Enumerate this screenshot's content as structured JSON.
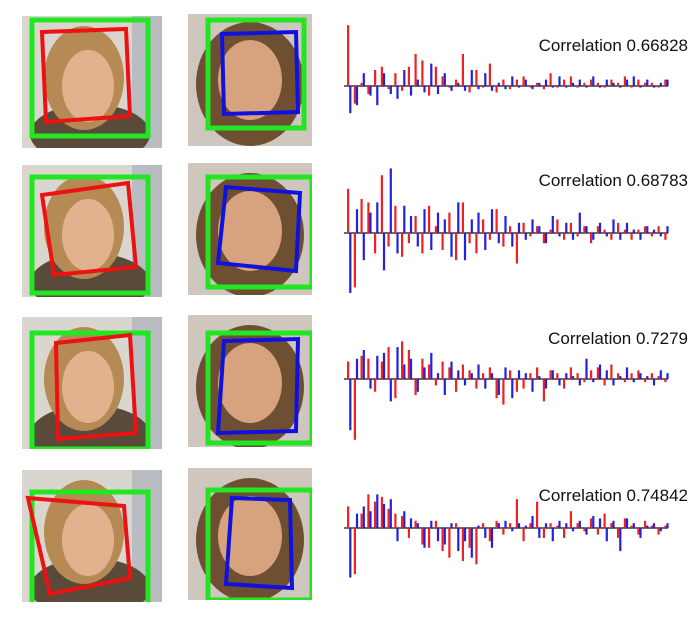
{
  "colors": {
    "face_box": "#22e622",
    "left_warp": "#ee1111",
    "right_warp": "#1111dd",
    "bar_a": "#ee2222",
    "bar_b": "#2222dd"
  },
  "rows": [
    {
      "label": "Correlation",
      "value": "0.66828"
    },
    {
      "label": "Correlation",
      "value": "0.68783"
    },
    {
      "label": "Correlation",
      "value": "0.7279"
    },
    {
      "label": "Correlation",
      "value": "0.74842"
    }
  ],
  "chart_data": [
    {
      "type": "bar",
      "title": "Correlation 0.66828",
      "series": [
        {
          "values": [
            0.95,
            -0.55,
            0.05,
            -0.25,
            0.25,
            0.3,
            -0.1,
            0.2,
            -0.15,
            0.3,
            0.5,
            0.4,
            -0.3,
            0.3,
            0.15,
            -0.05,
            0.1,
            0.5,
            -0.2,
            0.25,
            -0.05,
            0.35,
            -0.2,
            0.1,
            -0.1,
            0.1,
            0.15,
            -0.05,
            0.05,
            -0.1,
            0.2,
            -0.05,
            0.1,
            0.15,
            -0.05,
            0.05,
            0.1,
            0.05,
            -0.05,
            0.1,
            0.05,
            0.15,
            -0.05,
            0.1,
            0.05,
            0.05,
            -0.05,
            0.1
          ]
        },
        {
          "values": [
            -0.85,
            -0.6,
            0.2,
            -0.3,
            -0.6,
            0.2,
            -0.25,
            -0.4,
            0.25,
            -0.3,
            0.1,
            -0.2,
            0.35,
            -0.25,
            0.2,
            -0.15,
            0.05,
            -0.15,
            0.25,
            -0.1,
            0.2,
            -0.15,
            0.05,
            -0.1,
            0.15,
            -0.05,
            0.1,
            -0.1,
            0.05,
            0.1,
            -0.05,
            0.15,
            -0.05,
            0.05,
            0.1,
            -0.05,
            0.15,
            -0.05,
            0.1,
            0.05,
            -0.05,
            0.1,
            0.15,
            -0.05,
            0.1,
            -0.05,
            0.05,
            0.1
          ]
        }
      ]
    },
    {
      "type": "bar",
      "title": "Correlation 0.68783",
      "series": [
        {
          "values": [
            0.65,
            -0.8,
            0.5,
            0.45,
            -0.3,
            0.85,
            -0.2,
            0.4,
            -0.35,
            -0.15,
            0.25,
            -0.3,
            0.4,
            0.1,
            -0.25,
            0.3,
            -0.4,
            0.45,
            -0.15,
            -0.3,
            0.2,
            -0.1,
            0.35,
            -0.2,
            0.1,
            -0.45,
            0.15,
            -0.05,
            0.1,
            -0.15,
            0.05,
            0.2,
            -0.1,
            0.15,
            -0.05,
            0.1,
            -0.15,
            0.1,
            0.05,
            -0.1,
            0.15,
            0.05,
            -0.1,
            0.05,
            0.1,
            -0.05,
            0.1,
            -0.1
          ]
        },
        {
          "values": [
            -0.95,
            0.35,
            -0.4,
            0.3,
            0.45,
            -0.55,
            0.95,
            -0.3,
            0.4,
            0.25,
            -0.2,
            0.35,
            -0.25,
            0.3,
            0.2,
            -0.35,
            0.45,
            -0.4,
            0.2,
            0.3,
            -0.25,
            0.35,
            -0.15,
            0.25,
            -0.2,
            0.15,
            -0.1,
            0.2,
            0.1,
            -0.15,
            0.25,
            -0.05,
            0.15,
            -0.1,
            0.3,
            0.1,
            -0.1,
            0.15,
            -0.05,
            0.2,
            -0.1,
            0.15,
            0.05,
            -0.1,
            0.1,
            0.05,
            -0.05,
            0.1
          ]
        }
      ]
    },
    {
      "type": "bar",
      "title": "Correlation 0.7279",
      "series": [
        {
          "values": [
            0.3,
            -0.95,
            0.4,
            0.35,
            -0.2,
            0.3,
            0.55,
            -0.3,
            0.65,
            0.5,
            -0.25,
            0.35,
            0.25,
            -0.1,
            0.3,
            0.2,
            -0.2,
            0.25,
            0.15,
            -0.15,
            0.1,
            0.2,
            -0.3,
            -0.4,
            0.15,
            -0.2,
            -0.15,
            0.1,
            0.2,
            -0.35,
            0.15,
            0.1,
            -0.15,
            0.2,
            0.1,
            -0.05,
            0.15,
            0.2,
            -0.1,
            0.25,
            0.1,
            -0.05,
            0.1,
            0.15,
            -0.05,
            0.1,
            0.05,
            -0.05
          ]
        },
        {
          "values": [
            -0.8,
            0.35,
            0.5,
            -0.15,
            0.4,
            0.45,
            -0.35,
            0.55,
            0.25,
            0.35,
            -0.2,
            0.2,
            0.45,
            0.1,
            -0.25,
            0.3,
            0.15,
            -0.1,
            0.1,
            0.25,
            -0.15,
            0.1,
            -0.25,
            0.2,
            -0.3,
            0.15,
            0.1,
            -0.2,
            0.05,
            -0.15,
            0.15,
            -0.1,
            0.1,
            0.05,
            -0.1,
            0.35,
            -0.05,
            0.25,
            0.15,
            -0.1,
            0.05,
            0.2,
            -0.05,
            0.1,
            0.05,
            -0.1,
            0.15,
            0.1
          ]
        }
      ]
    },
    {
      "type": "bar",
      "title": "Correlation 0.74842",
      "series": [
        {
          "values": [
            0.45,
            -0.7,
            0.3,
            0.7,
            0.55,
            0.65,
            0.4,
            0.3,
            0.25,
            -0.15,
            0.15,
            -0.25,
            -0.3,
            0.15,
            -0.35,
            -0.45,
            0.1,
            -0.5,
            -0.3,
            -0.55,
            0.1,
            -0.2,
            0.15,
            -0.1,
            0.1,
            0.6,
            -0.2,
            0.1,
            0.55,
            -0.15,
            0.1,
            0.05,
            -0.15,
            0.35,
            0.1,
            -0.05,
            0.2,
            -0.1,
            0.3,
            0.1,
            -0.15,
            0.2,
            0.05,
            -0.1,
            0.15,
            0.05,
            -0.1,
            0.05
          ]
        },
        {
          "values": [
            -0.75,
            0.3,
            0.45,
            0.35,
            0.7,
            0.5,
            0.6,
            -0.2,
            0.35,
            0.2,
            0.1,
            -0.3,
            0.15,
            -0.2,
            -0.25,
            0.1,
            -0.35,
            -0.2,
            -0.45,
            0.05,
            -0.15,
            -0.3,
            0.1,
            0.15,
            -0.05,
            0.1,
            0.05,
            0.25,
            -0.15,
            0.1,
            -0.2,
            0.15,
            0.1,
            -0.05,
            0.15,
            -0.1,
            0.25,
            0.2,
            -0.2,
            0.15,
            -0.35,
            0.2,
            0.1,
            -0.15,
            0.05,
            0.1,
            -0.05,
            0.1
          ]
        }
      ]
    }
  ]
}
